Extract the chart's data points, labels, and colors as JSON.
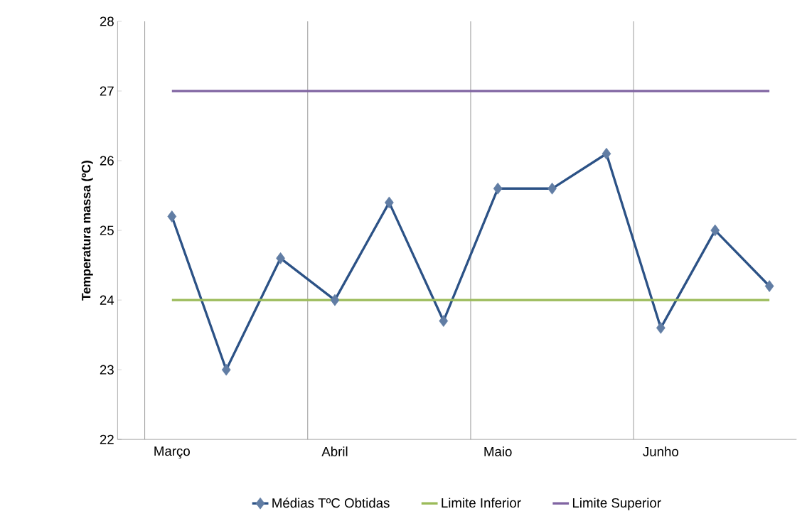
{
  "chart_data": {
    "type": "line",
    "ylabel": "Temperatura massa (ºC)",
    "categories": [
      "Março",
      null,
      null,
      "Abril",
      null,
      null,
      "Maio",
      null,
      null,
      "Junho",
      null,
      null
    ],
    "series": [
      {
        "name": "Médias TºC Obtidas",
        "color": "#2c5286",
        "values": [
          25.2,
          23.0,
          24.6,
          24.0,
          25.4,
          23.7,
          25.6,
          25.6,
          26.1,
          23.6,
          25.0,
          24.2
        ]
      },
      {
        "name": "Limite Inferior",
        "color": "#9bbb59",
        "marker": "none",
        "values": [
          24,
          24,
          24,
          24,
          24,
          24,
          24,
          24,
          24,
          24,
          24,
          24
        ]
      },
      {
        "name": "Limite Superior",
        "color": "#8064a2",
        "marker": "none",
        "values": [
          27,
          27,
          27,
          27,
          27,
          27,
          27,
          27,
          27,
          27,
          27,
          27
        ]
      }
    ],
    "ylim": [
      22,
      28
    ],
    "yticks": [
      22,
      23,
      24,
      25,
      26,
      27,
      28
    ],
    "grid": "x",
    "legend": "bottom",
    "marker": "diamond",
    "line_style": "solid"
  }
}
